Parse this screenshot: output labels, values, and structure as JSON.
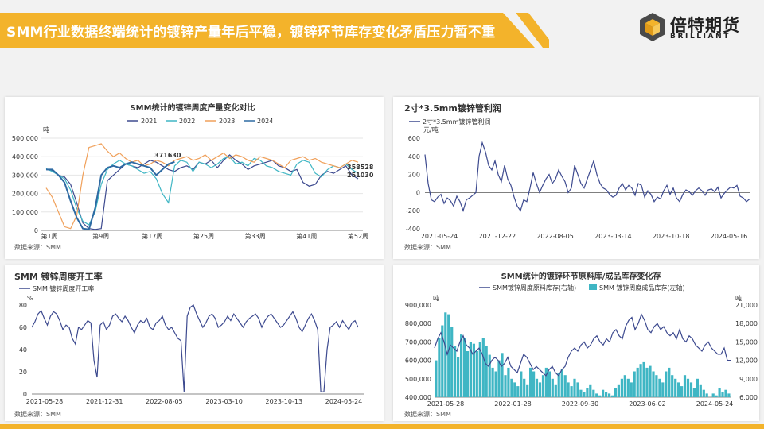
{
  "header": {
    "title": "SMM行业数据终端统计的镀锌产量年后平稳，镀锌环节库存变化矛盾压力暂不重",
    "logo_cn": "倍特期货",
    "logo_en": "BRILLIANT",
    "banner_color": "#f3b32b"
  },
  "chart_data": [
    {
      "type": "line",
      "title": "SMM统计的镀锌周度产量变化对比",
      "unit": "吨",
      "source": "数据来源：SMM",
      "xlabel": "",
      "ylabel": "",
      "ylim": [
        0,
        500000
      ],
      "yticks": [
        "500,000",
        "400,000",
        "300,000",
        "200,000",
        "100,000",
        "0"
      ],
      "x_ticks": [
        "第1周",
        "第9周",
        "第17周",
        "第25周",
        "第33周",
        "第41周",
        "第52周"
      ],
      "annotations": [
        "371630",
        "358528",
        "251030"
      ],
      "legend_position": "top",
      "series": [
        {
          "name": "2021",
          "color": "#3d4a8f",
          "values": [
            330000,
            325000,
            300000,
            290000,
            250000,
            150000,
            40000,
            10000,
            5000,
            10000,
            270000,
            300000,
            330000,
            360000,
            350000,
            340000,
            360000,
            380000,
            370000,
            350000,
            330000,
            320000,
            340000,
            350000,
            330000,
            370000,
            360000,
            380000,
            340000,
            380000,
            410000,
            380000,
            360000,
            330000,
            350000,
            360000,
            370000,
            380000,
            350000,
            340000,
            320000,
            330000,
            260000,
            240000,
            250000,
            300000,
            320000,
            310000,
            330000,
            350000,
            300000,
            280000
          ]
        },
        {
          "name": "2022",
          "color": "#3fb6c4",
          "values": [
            335000,
            320000,
            300000,
            280000,
            220000,
            120000,
            50000,
            30000,
            100000,
            250000,
            330000,
            360000,
            380000,
            360000,
            350000,
            330000,
            310000,
            320000,
            280000,
            200000,
            150000,
            350000,
            380000,
            370000,
            320000,
            370000,
            360000,
            340000,
            360000,
            390000,
            400000,
            360000,
            370000,
            350000,
            390000,
            380000,
            350000,
            340000,
            320000,
            310000,
            300000,
            360000,
            380000,
            370000,
            310000,
            290000,
            330000,
            350000,
            340000,
            360000,
            330000,
            310000
          ]
        },
        {
          "name": "2023",
          "color": "#f0a05a",
          "values": [
            230000,
            180000,
            100000,
            20000,
            10000,
            80000,
            300000,
            450000,
            460000,
            470000,
            430000,
            400000,
            420000,
            390000,
            370000,
            380000,
            350000,
            360000,
            380000,
            370000,
            350000,
            380000,
            390000,
            400000,
            380000,
            390000,
            410000,
            380000,
            400000,
            420000,
            390000,
            410000,
            400000,
            380000,
            370000,
            400000,
            390000,
            380000,
            360000,
            340000,
            380000,
            390000,
            400000,
            380000,
            390000,
            370000,
            360000,
            350000,
            340000,
            360000,
            380000,
            370000
          ]
        },
        {
          "name": "2024",
          "color": "#2e6aa3",
          "values": [
            330000,
            330000,
            300000,
            260000,
            160000,
            70000,
            10000,
            5000,
            120000,
            300000,
            340000,
            350000,
            340000,
            360000,
            370000,
            360000,
            350000,
            340000,
            300000,
            330000,
            360000,
            371630
          ]
        }
      ]
    },
    {
      "type": "line",
      "title": "2寸*3.5mm镀锌管利润",
      "unit": "元/吨",
      "source": "数据来源：SMM",
      "xlabel": "",
      "ylabel": "",
      "ylim": [
        -400,
        600
      ],
      "yticks": [
        "600",
        "400",
        "200",
        "0",
        "-200",
        "-400"
      ],
      "x_ticks": [
        "2021-05-24",
        "2021-12-22",
        "2022-08-05",
        "2023-03-14",
        "2023-10-18",
        "2024-05-16"
      ],
      "legend_position": "top-left",
      "series": [
        {
          "name": "2寸*3.5mm镀锌管利润",
          "color": "#3d4a8f",
          "values": [
            420,
            100,
            -80,
            -100,
            -50,
            -20,
            -120,
            -60,
            -90,
            -150,
            -40,
            -100,
            -200,
            -80,
            -60,
            -30,
            0,
            400,
            550,
            450,
            300,
            250,
            350,
            200,
            120,
            300,
            150,
            80,
            -50,
            -150,
            -200,
            -80,
            -100,
            50,
            220,
            100,
            0,
            80,
            150,
            200,
            100,
            150,
            250,
            180,
            120,
            0,
            50,
            300,
            200,
            100,
            50,
            150,
            250,
            350,
            200,
            100,
            50,
            30,
            -20,
            -50,
            -30,
            50,
            100,
            30,
            80,
            50,
            -30,
            100,
            80,
            -50,
            20,
            -20,
            -100,
            -50,
            -70,
            20,
            80,
            -20,
            50,
            -60,
            -100,
            -20,
            30,
            10,
            -30,
            20,
            50,
            20,
            -30,
            30,
            40,
            10,
            60,
            -60,
            -10,
            30,
            60,
            50,
            80,
            -40,
            -60,
            -100,
            -70
          ]
        }
      ]
    },
    {
      "type": "line",
      "title": "SMM 镀锌周度开工率",
      "unit": "%",
      "source": "数据来源：SMM",
      "xlabel": "",
      "ylabel": "",
      "ylim": [
        0,
        80
      ],
      "yticks": [
        "80",
        "60",
        "40",
        "20",
        "0"
      ],
      "x_ticks": [
        "2021-05-28",
        "2021-12-31",
        "2022-08-05",
        "2023-03-10",
        "2023-10-13",
        "2024-05-24"
      ],
      "legend_position": "top-left",
      "series": [
        {
          "name": "SMM 镀锌周度开工率",
          "color": "#3d4a8f",
          "values": [
            60,
            65,
            72,
            75,
            68,
            62,
            70,
            74,
            72,
            66,
            58,
            62,
            60,
            50,
            45,
            60,
            58,
            62,
            66,
            64,
            30,
            15,
            62,
            65,
            58,
            62,
            70,
            72,
            68,
            65,
            70,
            66,
            60,
            55,
            62,
            66,
            64,
            68,
            60,
            58,
            64,
            66,
            70,
            62,
            58,
            60,
            55,
            50,
            48,
            2,
            70,
            78,
            80,
            72,
            66,
            60,
            64,
            70,
            72,
            68,
            60,
            62,
            65,
            70,
            66,
            72,
            68,
            64,
            60,
            65,
            68,
            70,
            72,
            68,
            60,
            66,
            70,
            72,
            68,
            64,
            60,
            62,
            66,
            70,
            74,
            68,
            60,
            56,
            62,
            68,
            72,
            66,
            58,
            2,
            2,
            40,
            60,
            62,
            65,
            60,
            66,
            62,
            58,
            64,
            66,
            60
          ]
        }
      ]
    },
    {
      "type": "bar",
      "title": "SMM统计的镀锌环节原料库/成品库存变化存",
      "unit_left": "吨",
      "unit_right": "吨",
      "source": "数据来源：SMM",
      "xlabel": "",
      "ylabel": "",
      "ylim_left": [
        400000,
        900000
      ],
      "ylim_right": [
        6000,
        21000
      ],
      "yticks_left": [
        "900,000",
        "800,000",
        "700,000",
        "600,000",
        "500,000",
        "400,000"
      ],
      "yticks_right": [
        "21,000",
        "18,000",
        "15,000",
        "12,000",
        "9,000",
        "6,000"
      ],
      "x_ticks": [
        "2021-05-28",
        "2022-01-28",
        "2022-09-30",
        "2023-06-02",
        "2024-05-24"
      ],
      "legend_position": "top",
      "bars": {
        "name": "SMM 镀锌周度成品库存(左轴)",
        "color": "#3fb6c4",
        "values": [
          600000,
          720000,
          790000,
          860000,
          850000,
          780000,
          680000,
          620000,
          740000,
          720000,
          650000,
          700000,
          690000,
          650000,
          700000,
          720000,
          680000,
          630000,
          560000,
          540000,
          600000,
          640000,
          520000,
          560000,
          500000,
          480000,
          460000,
          540000,
          500000,
          470000,
          560000,
          540000,
          500000,
          480000,
          520000,
          560000,
          540000,
          500000,
          470000,
          530000,
          550000,
          520000,
          480000,
          460000,
          500000,
          480000,
          440000,
          430000,
          450000,
          470000,
          440000,
          420000,
          410000,
          440000,
          430000,
          420000,
          410000,
          450000,
          470000,
          500000,
          520000,
          500000,
          480000,
          540000,
          560000,
          580000,
          590000,
          560000,
          570000,
          540000,
          520000,
          500000,
          480000,
          540000,
          560000,
          520000,
          500000,
          480000,
          460000,
          520000,
          500000,
          480000,
          450000,
          500000,
          470000,
          440000,
          420000,
          400000,
          420000,
          410000,
          450000,
          430000,
          440000,
          420000
        ]
      },
      "series": [
        {
          "name": "SMM镀锌周度原料库存(右轴)",
          "color": "#3d4a8f",
          "values": [
            14000,
            15500,
            16500,
            15000,
            13000,
            14500,
            14000,
            13500,
            15000,
            16000,
            14500,
            14000,
            13000,
            13500,
            14000,
            13000,
            11500,
            11000,
            12000,
            12500,
            12000,
            11000,
            11500,
            12500,
            11000,
            10500,
            10000,
            11500,
            13000,
            12500,
            11500,
            10500,
            11000,
            10500,
            10000,
            9500,
            10500,
            11000,
            10000,
            9500,
            10500,
            11000,
            12500,
            13500,
            14000,
            13500,
            14500,
            15000,
            14000,
            14500,
            15500,
            16000,
            15000,
            14500,
            15500,
            15000,
            16500,
            17000,
            16000,
            15500,
            17500,
            18500,
            19000,
            17000,
            18000,
            19500,
            18500,
            17000,
            16500,
            17500,
            18000,
            17000,
            17500,
            16500,
            16000,
            16500,
            15500,
            17000,
            15500,
            15000,
            16000,
            15500,
            14500,
            14000,
            13500,
            14500,
            15000,
            14000,
            13500,
            13000,
            13000,
            14000,
            12000,
            12000
          ]
        }
      ]
    }
  ]
}
